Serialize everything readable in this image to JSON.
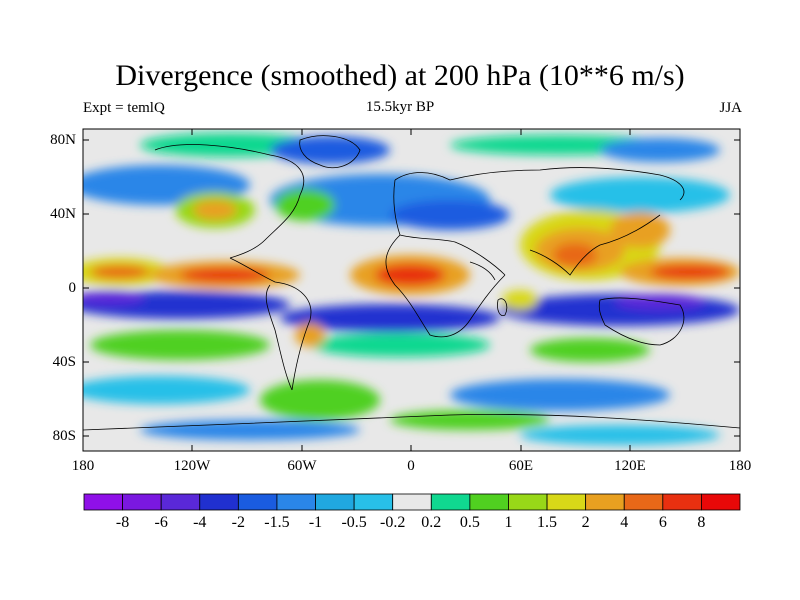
{
  "title": "Divergence (smoothed) at 200 hPa (10**6 m/s)",
  "left_subtitle": "Expt = temlQ",
  "center_subtitle": "15.5kyr BP",
  "right_subtitle": "JJA",
  "lat_ticks": [
    "80N",
    "40N",
    "0",
    "40S",
    "80S"
  ],
  "lon_ticks": [
    "180",
    "120W",
    "60W",
    "0",
    "60E",
    "120E",
    "180"
  ],
  "colorbar": {
    "labels": [
      "-8",
      "-6",
      "-4",
      "-2",
      "-1.5",
      "-1",
      "-0.5",
      "-0.2",
      "0.2",
      "0.5",
      "1",
      "1.5",
      "2",
      "4",
      "6",
      "8"
    ],
    "colors": [
      "#8f10e8",
      "#7a18e0",
      "#5a28d8",
      "#2030d0",
      "#1a5ce0",
      "#2a86e8",
      "#20a8e0",
      "#28c0e8",
      "#e8e8e8",
      "#10d890",
      "#50d020",
      "#98d818",
      "#d8d818",
      "#e8a020",
      "#e86818",
      "#e83010",
      "#e80808"
    ]
  },
  "colors": {
    "background": "#e8e8e8",
    "frame": "#000000",
    "coast": "#000000"
  }
}
